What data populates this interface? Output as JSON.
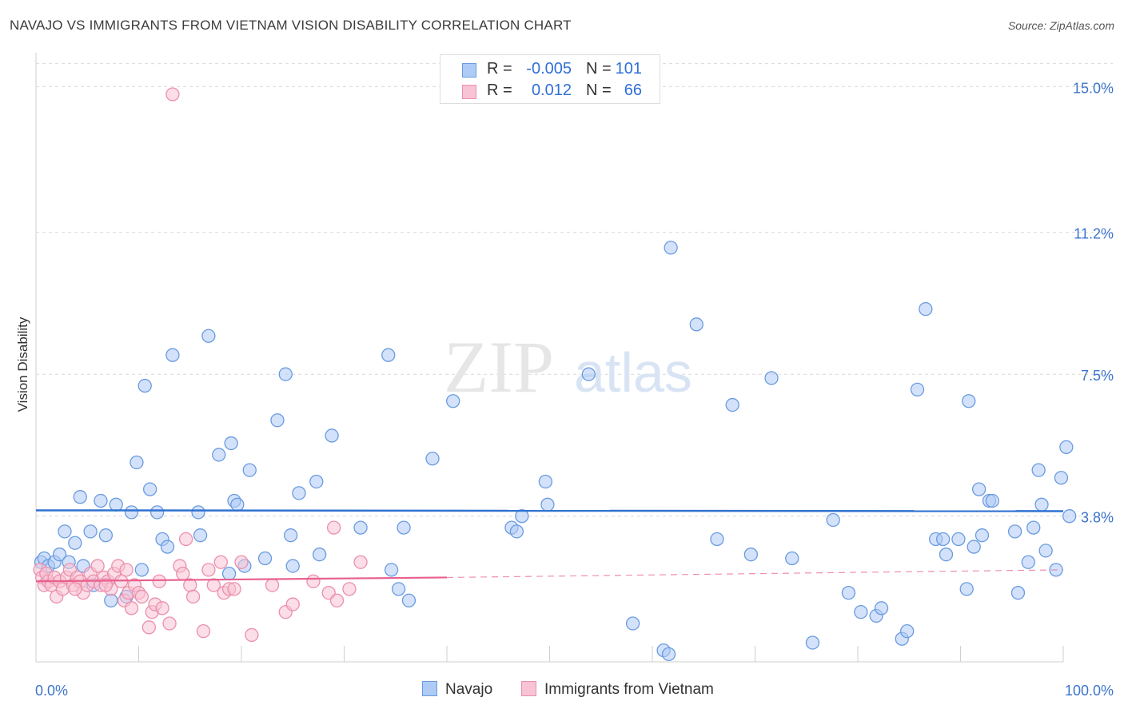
{
  "title": "NAVAJO VS IMMIGRANTS FROM VIETNAM VISION DISABILITY CORRELATION CHART",
  "source": "Source: ZipAtlas.com",
  "watermark": {
    "zip": "ZIP",
    "atlas": "atlas"
  },
  "colors": {
    "navajo_fill": "#aecbf5",
    "navajo_stroke": "#6a9be0",
    "navajo_line": "#2f72d0",
    "vietnam_fill": "#f8c3d4",
    "vietnam_stroke": "#ec8fac",
    "vietnam_line": "#e8608f",
    "tick_label": "#3d74cc",
    "grid": "#d9d9d9"
  },
  "legend_top": [
    {
      "r_label": "R =",
      "r_value": "-0.005",
      "n_label": "N =",
      "n_value": "101"
    },
    {
      "r_label": "R =",
      "r_value": "0.012",
      "n_label": "N =",
      "n_value": "66"
    }
  ],
  "legend_bottom": [
    "Navajo",
    "Immigrants from Vietnam"
  ],
  "chart_data": {
    "type": "scatter",
    "title": "NAVAJO VS IMMIGRANTS FROM VIETNAM VISION DISABILITY CORRELATION CHART",
    "xlabel": "",
    "ylabel": "Vision Disability",
    "xlim": [
      0,
      100
    ],
    "ylim": [
      0,
      15.8
    ],
    "x_tick_labels": [
      "0.0%",
      "100.0%"
    ],
    "y_ticks": [
      3.8,
      7.5,
      11.2,
      15.0
    ],
    "y_tick_labels": [
      "3.8%",
      "7.5%",
      "11.2%",
      "15.0%"
    ],
    "grid": "horizontal dashed",
    "legend_position": "top-center, bottom-center",
    "series": [
      {
        "name": "Navajo",
        "r": -0.005,
        "n": 101,
        "trend": {
          "x": [
            0,
            100
          ],
          "y": [
            3.95,
            3.93
          ]
        },
        "points": [
          [
            0.5,
            2.6
          ],
          [
            0.8,
            2.7
          ],
          [
            1.2,
            2.5
          ],
          [
            1.8,
            2.6
          ],
          [
            2.3,
            2.8
          ],
          [
            2.8,
            3.4
          ],
          [
            3.2,
            2.6
          ],
          [
            3.8,
            3.1
          ],
          [
            4.3,
            4.3
          ],
          [
            4.6,
            2.5
          ],
          [
            5.3,
            3.4
          ],
          [
            5.6,
            2.0
          ],
          [
            6.3,
            4.2
          ],
          [
            6.8,
            3.3
          ],
          [
            7.3,
            1.6
          ],
          [
            7.8,
            4.1
          ],
          [
            8.8,
            1.7
          ],
          [
            9.3,
            3.9
          ],
          [
            9.8,
            5.2
          ],
          [
            10.3,
            2.4
          ],
          [
            10.6,
            7.2
          ],
          [
            11.1,
            4.5
          ],
          [
            11.8,
            3.9
          ],
          [
            12.3,
            3.2
          ],
          [
            12.8,
            3.0
          ],
          [
            13.3,
            8.0
          ],
          [
            15.8,
            3.9
          ],
          [
            16.0,
            3.3
          ],
          [
            16.8,
            8.5
          ],
          [
            17.8,
            5.4
          ],
          [
            18.8,
            2.3
          ],
          [
            19.0,
            5.7
          ],
          [
            19.3,
            4.2
          ],
          [
            19.6,
            4.1
          ],
          [
            20.3,
            2.5
          ],
          [
            20.8,
            5.0
          ],
          [
            22.3,
            2.7
          ],
          [
            23.5,
            6.3
          ],
          [
            24.3,
            7.5
          ],
          [
            24.8,
            3.3
          ],
          [
            25.0,
            2.5
          ],
          [
            25.6,
            4.4
          ],
          [
            27.3,
            4.7
          ],
          [
            27.6,
            2.8
          ],
          [
            28.8,
            5.9
          ],
          [
            31.6,
            3.5
          ],
          [
            34.3,
            8.0
          ],
          [
            34.6,
            2.4
          ],
          [
            35.3,
            1.9
          ],
          [
            35.8,
            3.5
          ],
          [
            36.3,
            1.6
          ],
          [
            38.6,
            5.3
          ],
          [
            40.6,
            6.8
          ],
          [
            46.3,
            3.5
          ],
          [
            46.8,
            3.4
          ],
          [
            47.3,
            3.8
          ],
          [
            49.6,
            4.7
          ],
          [
            49.8,
            4.1
          ],
          [
            53.8,
            7.5
          ],
          [
            58.1,
            1.0
          ],
          [
            61.1,
            0.3
          ],
          [
            61.6,
            0.2
          ],
          [
            61.8,
            10.8
          ],
          [
            64.3,
            8.8
          ],
          [
            66.3,
            3.2
          ],
          [
            67.8,
            6.7
          ],
          [
            69.6,
            2.8
          ],
          [
            71.6,
            7.4
          ],
          [
            73.6,
            2.7
          ],
          [
            75.6,
            0.5
          ],
          [
            77.6,
            3.7
          ],
          [
            79.1,
            1.8
          ],
          [
            80.3,
            1.3
          ],
          [
            81.8,
            1.2
          ],
          [
            82.3,
            1.4
          ],
          [
            84.3,
            0.6
          ],
          [
            84.8,
            0.8
          ],
          [
            85.8,
            7.1
          ],
          [
            86.6,
            9.2
          ],
          [
            87.6,
            3.2
          ],
          [
            88.3,
            3.2
          ],
          [
            88.6,
            2.8
          ],
          [
            89.8,
            3.2
          ],
          [
            90.6,
            1.9
          ],
          [
            90.8,
            6.8
          ],
          [
            91.3,
            3.0
          ],
          [
            91.8,
            4.5
          ],
          [
            92.1,
            3.3
          ],
          [
            92.8,
            4.2
          ],
          [
            93.1,
            4.2
          ],
          [
            95.3,
            3.4
          ],
          [
            95.6,
            1.8
          ],
          [
            96.6,
            2.6
          ],
          [
            97.1,
            3.5
          ],
          [
            97.6,
            5.0
          ],
          [
            97.9,
            4.1
          ],
          [
            98.3,
            2.9
          ],
          [
            99.3,
            2.4
          ],
          [
            99.8,
            4.8
          ],
          [
            100.6,
            3.8
          ],
          [
            100.3,
            5.6
          ]
        ]
      },
      {
        "name": "Immigrants from Vietnam",
        "r": 0.012,
        "n": 66,
        "trend": {
          "x": [
            0,
            40
          ],
          "y": [
            2.1,
            2.2
          ]
        },
        "trend_dashed": {
          "x": [
            40,
            100
          ],
          "y": [
            2.2,
            2.4
          ]
        },
        "points": [
          [
            0.4,
            2.4
          ],
          [
            0.6,
            2.2
          ],
          [
            0.8,
            2.0
          ],
          [
            1.0,
            2.3
          ],
          [
            1.2,
            2.1
          ],
          [
            1.5,
            2.0
          ],
          [
            1.8,
            2.2
          ],
          [
            2.0,
            1.7
          ],
          [
            2.3,
            2.1
          ],
          [
            2.6,
            1.9
          ],
          [
            3.0,
            2.2
          ],
          [
            3.3,
            2.4
          ],
          [
            3.6,
            2.0
          ],
          [
            4.0,
            2.2
          ],
          [
            4.3,
            2.1
          ],
          [
            4.6,
            1.8
          ],
          [
            5.0,
            2.0
          ],
          [
            5.3,
            2.3
          ],
          [
            5.6,
            2.1
          ],
          [
            6.0,
            2.5
          ],
          [
            6.3,
            2.0
          ],
          [
            6.6,
            2.2
          ],
          [
            7.0,
            2.1
          ],
          [
            7.3,
            1.9
          ],
          [
            7.6,
            2.3
          ],
          [
            8.0,
            2.5
          ],
          [
            8.3,
            2.1
          ],
          [
            8.6,
            1.6
          ],
          [
            9.0,
            1.8
          ],
          [
            9.3,
            1.4
          ],
          [
            9.6,
            2.0
          ],
          [
            10.0,
            1.8
          ],
          [
            10.3,
            1.7
          ],
          [
            11.0,
            0.9
          ],
          [
            11.3,
            1.3
          ],
          [
            11.6,
            1.5
          ],
          [
            12.3,
            1.4
          ],
          [
            13.0,
            1.0
          ],
          [
            13.3,
            14.8
          ],
          [
            14.0,
            2.5
          ],
          [
            14.3,
            2.3
          ],
          [
            14.6,
            3.2
          ],
          [
            15.0,
            2.0
          ],
          [
            15.3,
            1.7
          ],
          [
            16.3,
            0.8
          ],
          [
            16.8,
            2.4
          ],
          [
            17.3,
            2.0
          ],
          [
            18.0,
            2.6
          ],
          [
            18.3,
            1.8
          ],
          [
            18.8,
            1.9
          ],
          [
            19.3,
            1.9
          ],
          [
            20.0,
            2.6
          ],
          [
            21.0,
            0.7
          ],
          [
            23.0,
            2.0
          ],
          [
            24.3,
            1.3
          ],
          [
            25.0,
            1.5
          ],
          [
            27.0,
            2.1
          ],
          [
            28.5,
            1.8
          ],
          [
            29.3,
            1.6
          ],
          [
            29.0,
            3.5
          ],
          [
            30.5,
            1.9
          ],
          [
            31.6,
            2.6
          ],
          [
            12.0,
            2.1
          ],
          [
            8.8,
            2.4
          ],
          [
            3.8,
            1.9
          ],
          [
            6.8,
            2.0
          ]
        ]
      }
    ]
  }
}
